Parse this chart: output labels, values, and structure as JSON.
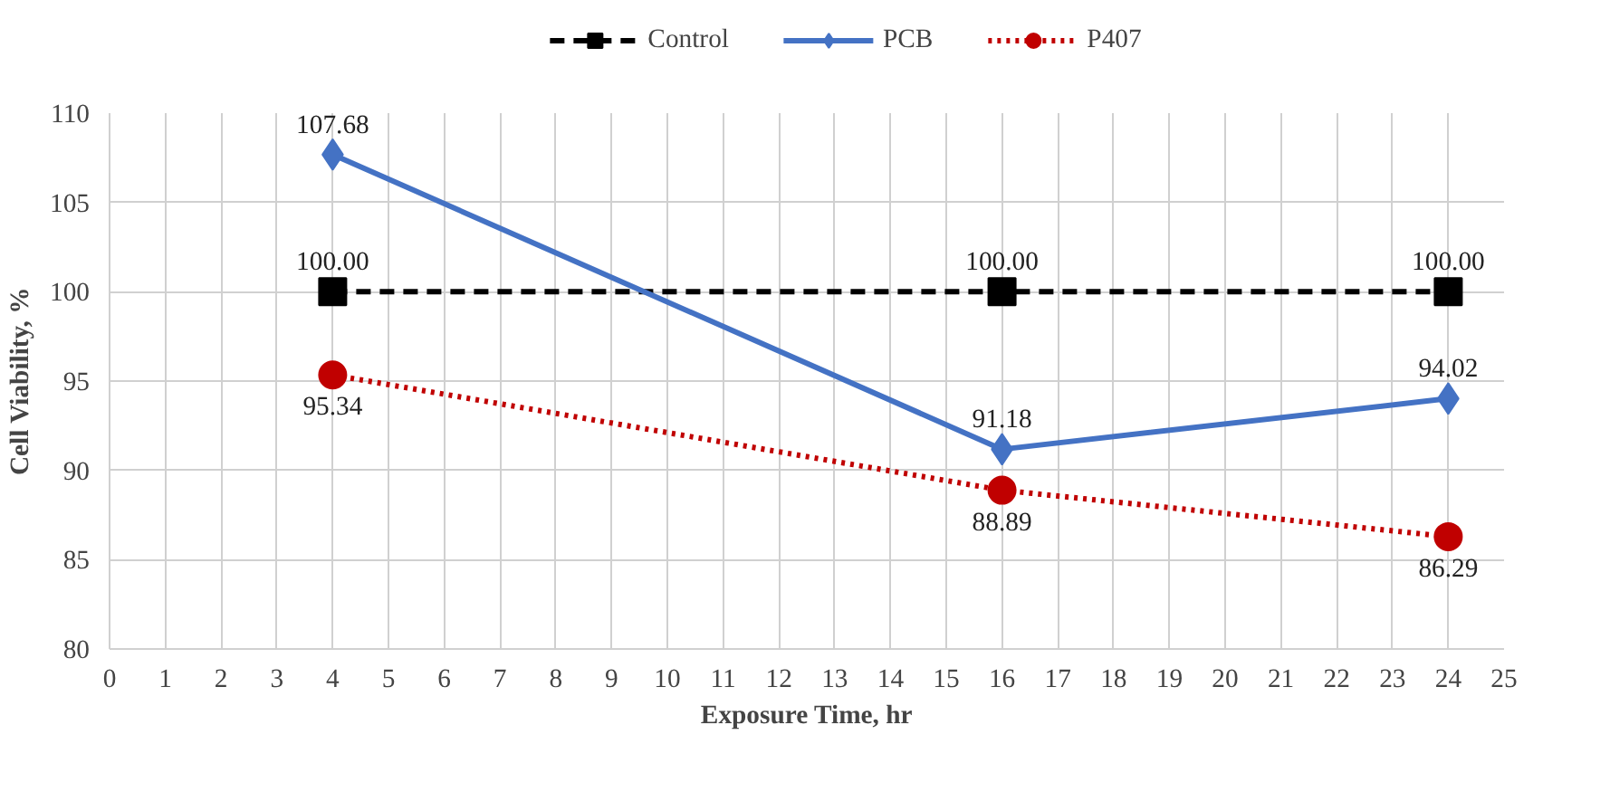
{
  "chart_data": {
    "type": "line",
    "xlabel": "Exposure Time, hr",
    "ylabel": "Cell Viability, %",
    "x": [
      4,
      16,
      24
    ],
    "series": [
      {
        "name": "Control",
        "color": "#000000",
        "values": [
          100.0,
          100.0,
          100.0
        ],
        "value_labels": [
          "100.00",
          "100.00",
          "100.00"
        ],
        "marker": "square",
        "line_style": "dashed"
      },
      {
        "name": "PCB",
        "color": "#4472c4",
        "values": [
          107.68,
          91.18,
          94.02
        ],
        "value_labels": [
          "107.68",
          "91.18",
          "94.02"
        ],
        "marker": "diamond",
        "line_style": "solid"
      },
      {
        "name": "P407",
        "color": "#c00000",
        "values": [
          95.34,
          88.89,
          86.29
        ],
        "value_labels": [
          "95.34",
          "88.89",
          "86.29"
        ],
        "marker": "circle",
        "line_style": "dotted"
      }
    ],
    "xlim": [
      0,
      25
    ],
    "xticks": [
      0,
      1,
      2,
      3,
      4,
      5,
      6,
      7,
      8,
      9,
      10,
      11,
      12,
      13,
      14,
      15,
      16,
      17,
      18,
      19,
      20,
      21,
      22,
      23,
      24,
      25
    ],
    "ylim": [
      80,
      110
    ],
    "yticks": [
      80,
      85,
      90,
      95,
      100,
      105,
      110
    ],
    "grid": true,
    "legend": "top"
  }
}
